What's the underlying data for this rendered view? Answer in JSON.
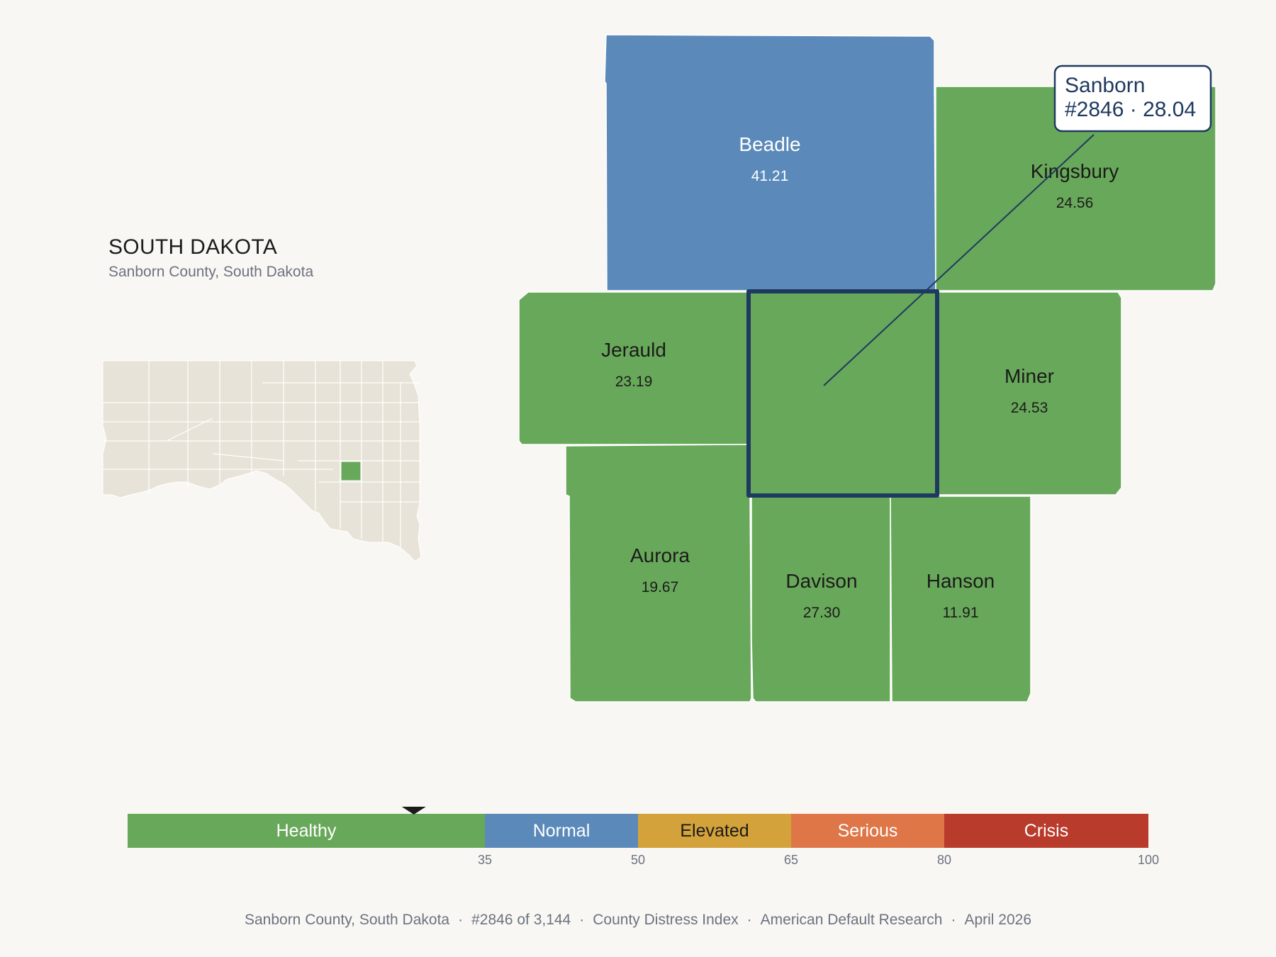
{
  "header": {
    "state_title": "SOUTH DAKOTA",
    "subtitle": "Sanborn County, South Dakota"
  },
  "colors": {
    "healthy": "#68a85a",
    "normal": "#5b8aba",
    "elevated": "#d4a23a",
    "serious": "#de7647",
    "crisis": "#b93b2c",
    "highlight": "#1f3a60",
    "state_fill": "#e8e3d8",
    "background": "#f9f7f3"
  },
  "counties": [
    {
      "name": "Beadle",
      "value": "41.21",
      "category": "normal"
    },
    {
      "name": "Kingsbury",
      "value": "24.56",
      "category": "healthy"
    },
    {
      "name": "Jerauld",
      "value": "23.19",
      "category": "healthy"
    },
    {
      "name": "Miner",
      "value": "24.53",
      "category": "healthy"
    },
    {
      "name": "Aurora",
      "value": "19.67",
      "category": "healthy"
    },
    {
      "name": "Davison",
      "value": "27.30",
      "category": "healthy"
    },
    {
      "name": "Hanson",
      "value": "11.91",
      "category": "healthy"
    }
  ],
  "focus": {
    "name": "Sanborn",
    "callout_line1": "Sanborn",
    "callout_line2": "#2846 · 28.04",
    "score": 28.04
  },
  "legend": {
    "segments": [
      {
        "label": "Healthy",
        "from": 0,
        "to": 35,
        "category": "healthy"
      },
      {
        "label": "Normal",
        "from": 35,
        "to": 50,
        "category": "normal"
      },
      {
        "label": "Elevated",
        "from": 50,
        "to": 65,
        "category": "elevated"
      },
      {
        "label": "Serious",
        "from": 65,
        "to": 80,
        "category": "serious"
      },
      {
        "label": "Crisis",
        "from": 80,
        "to": 100,
        "category": "crisis"
      }
    ],
    "ticks": [
      "35",
      "50",
      "65",
      "80",
      "100"
    ],
    "marker_value": 28.04
  },
  "footer": {
    "location": "Sanborn County, South Dakota",
    "rank": "#2846 of 3,144",
    "index": "County Distress Index",
    "source": "American Default Research",
    "date": "April 2026"
  }
}
